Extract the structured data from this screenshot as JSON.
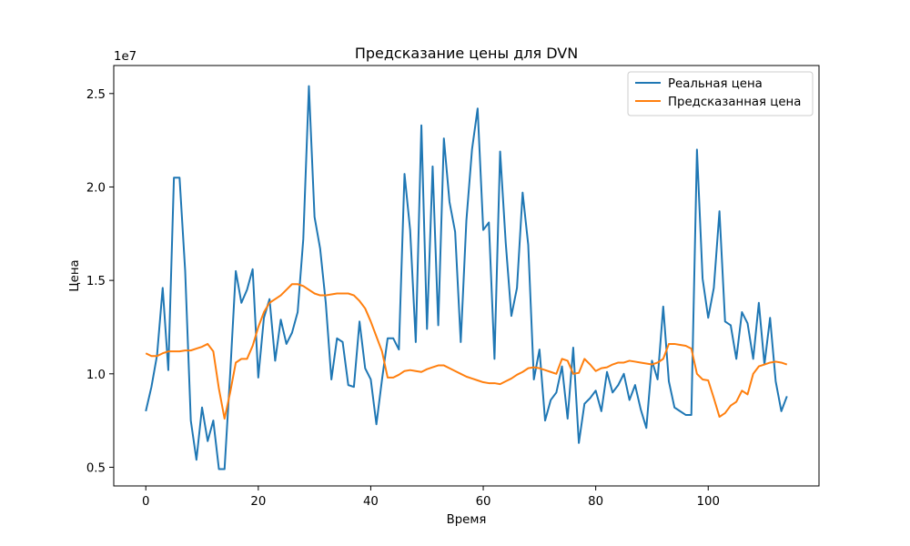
{
  "chart_data": {
    "type": "line",
    "title": "Предсказание цены для DVN",
    "xlabel": "Время",
    "ylabel": "Цена",
    "y_offset_label": "1e7",
    "xlim": [
      -5.7,
      119.7
    ],
    "ylim": [
      4000000,
      26500000
    ],
    "x_ticks": [
      0,
      20,
      40,
      60,
      80,
      100
    ],
    "x_tick_labels": [
      "0",
      "20",
      "40",
      "60",
      "80",
      "100"
    ],
    "y_ticks": [
      5000000,
      10000000,
      15000000,
      20000000,
      25000000
    ],
    "y_tick_labels": [
      "0.5",
      "1.0",
      "1.5",
      "2.0",
      "2.5"
    ],
    "grid": false,
    "legend_position": "top-right",
    "x": [
      0,
      1,
      2,
      3,
      4,
      5,
      6,
      7,
      8,
      9,
      10,
      11,
      12,
      13,
      14,
      15,
      16,
      17,
      18,
      19,
      20,
      21,
      22,
      23,
      24,
      25,
      26,
      27,
      28,
      29,
      30,
      31,
      32,
      33,
      34,
      35,
      36,
      37,
      38,
      39,
      40,
      41,
      42,
      43,
      44,
      45,
      46,
      47,
      48,
      49,
      50,
      51,
      52,
      53,
      54,
      55,
      56,
      57,
      58,
      59,
      60,
      61,
      62,
      63,
      64,
      65,
      66,
      67,
      68,
      69,
      70,
      71,
      72,
      73,
      74,
      75,
      76,
      77,
      78,
      79,
      80,
      81,
      82,
      83,
      84,
      85,
      86,
      87,
      88,
      89,
      90,
      91,
      92,
      93,
      94,
      95,
      96,
      97,
      98,
      99,
      100,
      101,
      102,
      103,
      104,
      105,
      106,
      107,
      108,
      109,
      110,
      111,
      112,
      113,
      114
    ],
    "series": [
      {
        "name": "Реальная цена",
        "color": "#1f77b4",
        "values": [
          8000000,
          9300000,
          11000000,
          14600000,
          10200000,
          20500000,
          20500000,
          15500000,
          7500000,
          5400000,
          8200000,
          6400000,
          7500000,
          4900000,
          4900000,
          10000000,
          15500000,
          13800000,
          14500000,
          15600000,
          9800000,
          13000000,
          14000000,
          10700000,
          12900000,
          11600000,
          12200000,
          13300000,
          17200000,
          25400000,
          18400000,
          16700000,
          13800000,
          9700000,
          11900000,
          11700000,
          9400000,
          9300000,
          12800000,
          10300000,
          9700000,
          7300000,
          9700000,
          11900000,
          11900000,
          11300000,
          20700000,
          17700000,
          11700000,
          23300000,
          12400000,
          21100000,
          12600000,
          22600000,
          19200000,
          17600000,
          11700000,
          18200000,
          22000000,
          24200000,
          17700000,
          18100000,
          10800000,
          21900000,
          17000000,
          13100000,
          14600000,
          19700000,
          16900000,
          9700000,
          11300000,
          7500000,
          8600000,
          9000000,
          10400000,
          7600000,
          11400000,
          6300000,
          8400000,
          8700000,
          9100000,
          8000000,
          10100000,
          9000000,
          9400000,
          10000000,
          8600000,
          9400000,
          8100000,
          7100000,
          10700000,
          9700000,
          13600000,
          9600000,
          8200000,
          8000000,
          7800000,
          7800000,
          22000000,
          15100000,
          13000000,
          14600000,
          18700000,
          12800000,
          12600000,
          10800000,
          13300000,
          12700000,
          10800000,
          13800000,
          10500000,
          13000000,
          9600000,
          8000000,
          8800000
        ]
      },
      {
        "name": "Предсказанная цена",
        "color": "#ff7f0e",
        "values": [
          11100000,
          10950000,
          10950000,
          11100000,
          11200000,
          11200000,
          11200000,
          11250000,
          11250000,
          11350000,
          11450000,
          11600000,
          11200000,
          9200000,
          7600000,
          9000000,
          10600000,
          10800000,
          10800000,
          11500000,
          12500000,
          13300000,
          13800000,
          14000000,
          14200000,
          14500000,
          14800000,
          14800000,
          14700000,
          14500000,
          14300000,
          14200000,
          14200000,
          14250000,
          14300000,
          14300000,
          14300000,
          14200000,
          13900000,
          13500000,
          12800000,
          12000000,
          11200000,
          9800000,
          9800000,
          9950000,
          10150000,
          10200000,
          10150000,
          10100000,
          10250000,
          10350000,
          10450000,
          10450000,
          10300000,
          10150000,
          10000000,
          9850000,
          9750000,
          9650000,
          9550000,
          9500000,
          9500000,
          9450000,
          9600000,
          9750000,
          9950000,
          10100000,
          10300000,
          10350000,
          10300000,
          10200000,
          10100000,
          10000000,
          10800000,
          10700000,
          10000000,
          10050000,
          10800000,
          10500000,
          10150000,
          10300000,
          10350000,
          10500000,
          10600000,
          10600000,
          10700000,
          10650000,
          10600000,
          10550000,
          10500000,
          10600000,
          10800000,
          11600000,
          11600000,
          11550000,
          11500000,
          11350000,
          10000000,
          9700000,
          9650000,
          8700000,
          7700000,
          7900000,
          8300000,
          8500000,
          9100000,
          8900000,
          10000000,
          10400000,
          10500000,
          10600000,
          10650000,
          10600000,
          10500000
        ]
      }
    ]
  }
}
